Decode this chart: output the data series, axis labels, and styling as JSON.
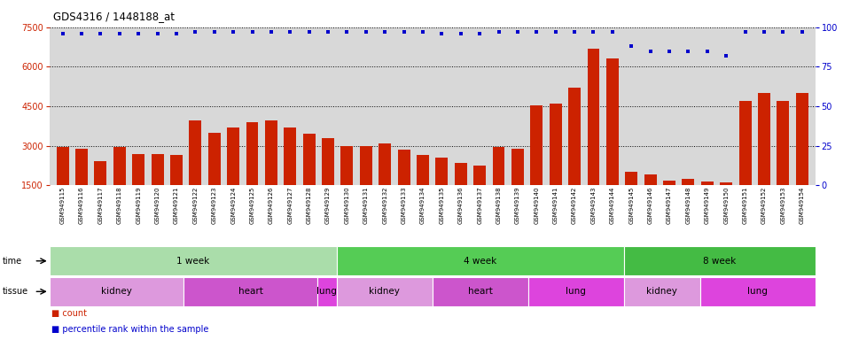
{
  "title": "GDS4316 / 1448188_at",
  "samples": [
    "GSM949115",
    "GSM949116",
    "GSM949117",
    "GSM949118",
    "GSM949119",
    "GSM949120",
    "GSM949121",
    "GSM949122",
    "GSM949123",
    "GSM949124",
    "GSM949125",
    "GSM949126",
    "GSM949127",
    "GSM949128",
    "GSM949129",
    "GSM949130",
    "GSM949131",
    "GSM949132",
    "GSM949133",
    "GSM949134",
    "GSM949135",
    "GSM949136",
    "GSM949137",
    "GSM949138",
    "GSM949139",
    "GSM949140",
    "GSM949141",
    "GSM949142",
    "GSM949143",
    "GSM949144",
    "GSM949145",
    "GSM949146",
    "GSM949147",
    "GSM949148",
    "GSM949149",
    "GSM949150",
    "GSM949151",
    "GSM949152",
    "GSM949153",
    "GSM949154"
  ],
  "counts": [
    2950,
    2880,
    2400,
    2950,
    2700,
    2700,
    2650,
    3950,
    3500,
    3700,
    3900,
    3950,
    3700,
    3450,
    3300,
    2980,
    3000,
    3100,
    2850,
    2650,
    2550,
    2350,
    2250,
    2950,
    2900,
    4550,
    4600,
    5200,
    6700,
    6300,
    2000,
    1900,
    1680,
    1750,
    1630,
    1600,
    4700,
    5000,
    4700,
    5000
  ],
  "percentiles": [
    96,
    96,
    96,
    96,
    96,
    96,
    96,
    97,
    97,
    97,
    97,
    97,
    97,
    97,
    97,
    97,
    97,
    97,
    97,
    97,
    96,
    96,
    96,
    97,
    97,
    97,
    97,
    97,
    97,
    97,
    88,
    85,
    85,
    85,
    85,
    82,
    97,
    97,
    97,
    97
  ],
  "ylim_left": [
    1500,
    7500
  ],
  "ylim_right": [
    0,
    100
  ],
  "yticks_left": [
    1500,
    3000,
    4500,
    6000,
    7500
  ],
  "yticks_right": [
    0,
    25,
    50,
    75,
    100
  ],
  "bar_color": "#cc2200",
  "dot_color": "#0000cc",
  "bg_color": "#d8d8d8",
  "time_groups": [
    {
      "label": "1 week",
      "start": 0,
      "end": 14,
      "color": "#aaddaa"
    },
    {
      "label": "4 week",
      "start": 15,
      "end": 29,
      "color": "#55cc55"
    },
    {
      "label": "8 week",
      "start": 30,
      "end": 39,
      "color": "#44bb44"
    }
  ],
  "tissue_groups": [
    {
      "label": "kidney",
      "start": 0,
      "end": 6,
      "color": "#dd99dd"
    },
    {
      "label": "heart",
      "start": 7,
      "end": 13,
      "color": "#cc55cc"
    },
    {
      "label": "lung",
      "start": 14,
      "end": 14,
      "color": "#dd44dd"
    },
    {
      "label": "kidney",
      "start": 15,
      "end": 19,
      "color": "#dd99dd"
    },
    {
      "label": "heart",
      "start": 20,
      "end": 24,
      "color": "#cc55cc"
    },
    {
      "label": "lung",
      "start": 25,
      "end": 29,
      "color": "#dd44dd"
    },
    {
      "label": "kidney",
      "start": 30,
      "end": 33,
      "color": "#dd99dd"
    },
    {
      "label": "lung",
      "start": 34,
      "end": 39,
      "color": "#dd44dd"
    }
  ]
}
